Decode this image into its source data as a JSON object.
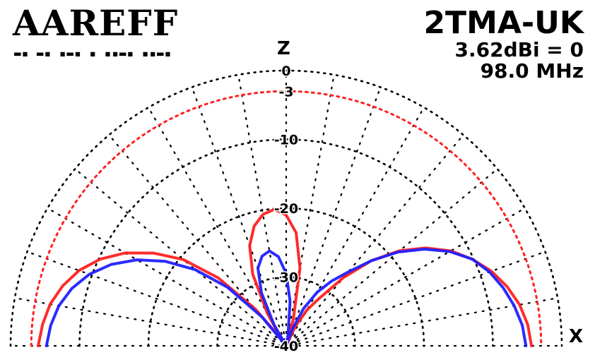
{
  "logo": {
    "text": "AAREFF",
    "morse": "▬▪ ▬▪ ▪▬▪ ▪ ▪▪▬▪ ▪▪▬▪"
  },
  "header": {
    "model": "2TMA-UK",
    "gain": "3.62dBi = 0",
    "frequency": "98.0 MHz"
  },
  "axes": {
    "vertical": "Z",
    "horizontal": "X"
  },
  "colors": {
    "background": "#ffffff",
    "grid": "#000000",
    "reference_ring": "#ff2020",
    "series_red": "#ff2020",
    "series_blue": "#2020ff"
  },
  "chart_data": {
    "type": "polar",
    "half_plane": "upper",
    "rings_db": [
      0,
      -3,
      -10,
      -20,
      -30,
      -40
    ],
    "ring_labels": [
      "0",
      "-3",
      "-10",
      "-20",
      "-30",
      "-40"
    ],
    "reference_ring_db": -3,
    "radial_spokes_deg": 10,
    "min_db": -40,
    "max_db": 0,
    "series": [
      {
        "color": "red",
        "points": [
          {
            "deg": 0,
            "db": -4.0
          },
          {
            "deg": 5,
            "db": -4.5
          },
          {
            "deg": 10,
            "db": -5.2
          },
          {
            "deg": 15,
            "db": -6.4
          },
          {
            "deg": 20,
            "db": -8.0
          },
          {
            "deg": 25,
            "db": -10.2
          },
          {
            "deg": 30,
            "db": -13.0
          },
          {
            "deg": 35,
            "db": -16.5
          },
          {
            "deg": 40,
            "db": -20.5
          },
          {
            "deg": 45,
            "db": -26.0
          },
          {
            "deg": 50,
            "db": -33.0
          },
          {
            "deg": 55,
            "db": -39.0
          },
          {
            "deg": 60,
            "db": -34.5
          },
          {
            "deg": 65,
            "db": -28.5
          },
          {
            "deg": 70,
            "db": -24.5
          },
          {
            "deg": 75,
            "db": -22.0
          },
          {
            "deg": 80,
            "db": -20.6
          },
          {
            "deg": 85,
            "db": -20.1
          },
          {
            "deg": 90,
            "db": -21.0
          },
          {
            "deg": 95,
            "db": -23.5
          },
          {
            "deg": 100,
            "db": -28.5
          },
          {
            "deg": 105,
            "db": -36.0
          },
          {
            "deg": 110,
            "db": -40.0
          },
          {
            "deg": 115,
            "db": -37.0
          },
          {
            "deg": 120,
            "db": -34.0
          },
          {
            "deg": 125,
            "db": -31.5
          },
          {
            "deg": 130,
            "db": -27.0
          },
          {
            "deg": 135,
            "db": -22.5
          },
          {
            "deg": 140,
            "db": -18.5
          },
          {
            "deg": 145,
            "db": -15.2
          },
          {
            "deg": 150,
            "db": -12.4
          },
          {
            "deg": 155,
            "db": -10.2
          },
          {
            "deg": 160,
            "db": -8.3
          },
          {
            "deg": 165,
            "db": -6.8
          },
          {
            "deg": 170,
            "db": -5.6
          },
          {
            "deg": 175,
            "db": -4.8
          },
          {
            "deg": 180,
            "db": -4.4
          }
        ]
      },
      {
        "color": "blue",
        "points": [
          {
            "deg": 0,
            "db": -5.2
          },
          {
            "deg": 5,
            "db": -5.7
          },
          {
            "deg": 10,
            "db": -6.5
          },
          {
            "deg": 15,
            "db": -7.8
          },
          {
            "deg": 20,
            "db": -9.6
          },
          {
            "deg": 25,
            "db": -12.0
          },
          {
            "deg": 30,
            "db": -15.0
          },
          {
            "deg": 35,
            "db": -18.6
          },
          {
            "deg": 40,
            "db": -22.8
          },
          {
            "deg": 45,
            "db": -28.0
          },
          {
            "deg": 50,
            "db": -34.5
          },
          {
            "deg": 55,
            "db": -40.0
          },
          {
            "deg": 60,
            "db": -36.5
          },
          {
            "deg": 65,
            "db": -31.5
          },
          {
            "deg": 70,
            "db": -28.0
          },
          {
            "deg": 75,
            "db": -26.5
          },
          {
            "deg": 80,
            "db": -26.0
          },
          {
            "deg": 85,
            "db": -27.0
          },
          {
            "deg": 90,
            "db": -29.5
          },
          {
            "deg": 95,
            "db": -33.5
          },
          {
            "deg": 100,
            "db": -38.5
          },
          {
            "deg": 105,
            "db": -40.0
          },
          {
            "deg": 110,
            "db": -37.5
          },
          {
            "deg": 115,
            "db": -34.0
          },
          {
            "deg": 120,
            "db": -31.0
          },
          {
            "deg": 125,
            "db": -28.5
          },
          {
            "deg": 130,
            "db": -26.0
          },
          {
            "deg": 135,
            "db": -22.5
          },
          {
            "deg": 140,
            "db": -18.8
          },
          {
            "deg": 145,
            "db": -15.5
          },
          {
            "deg": 150,
            "db": -12.6
          },
          {
            "deg": 155,
            "db": -10.2
          },
          {
            "deg": 160,
            "db": -8.6
          },
          {
            "deg": 165,
            "db": -7.4
          },
          {
            "deg": 170,
            "db": -6.4
          },
          {
            "deg": 175,
            "db": -5.6
          },
          {
            "deg": 180,
            "db": -5.2
          }
        ]
      }
    ]
  }
}
